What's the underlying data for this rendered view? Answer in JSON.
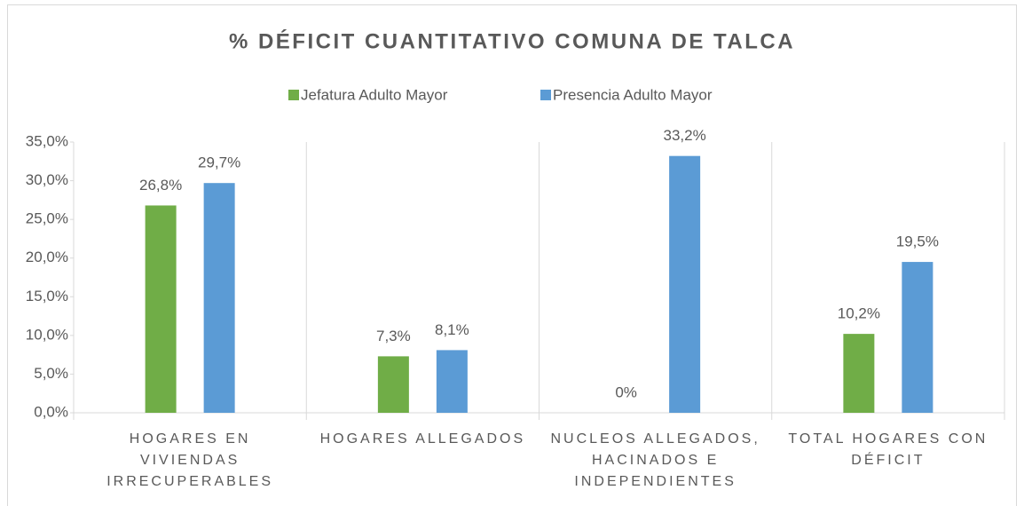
{
  "chart_data": {
    "type": "bar",
    "title": "% DÉFICIT CUANTITATIVO COMUNA DE TALCA",
    "categories": [
      "HOGARES EN VIVIENDAS IRRECUPERABLES",
      "HOGARES ALLEGADOS",
      "NUCLEOS ALLEGADOS, HACINADOS E INDEPENDIENTES",
      "TOTAL HOGARES CON DÉFICIT"
    ],
    "series": [
      {
        "name": "Jefatura Adulto Mayor",
        "color": "#70ad47",
        "values": [
          26.8,
          7.3,
          0,
          10.2
        ],
        "value_labels": [
          "26,8%",
          "7,3%",
          "0%",
          "10,2%"
        ]
      },
      {
        "name": "Presencia Adulto Mayor",
        "color": "#5b9bd5",
        "values": [
          29.7,
          8.1,
          33.2,
          19.5
        ],
        "value_labels": [
          "29,7%",
          "8,1%",
          "33,2%",
          "19,5%"
        ]
      }
    ],
    "ylim": [
      0,
      35
    ],
    "yticks": [
      {
        "value": 0,
        "label": "0,0%"
      },
      {
        "value": 5,
        "label": "5,0%"
      },
      {
        "value": 10,
        "label": "10,0%"
      },
      {
        "value": 15,
        "label": "15,0%"
      },
      {
        "value": 20,
        "label": "20,0%"
      },
      {
        "value": 25,
        "label": "25,0%"
      },
      {
        "value": 30,
        "label": "30,0%"
      },
      {
        "value": 35,
        "label": "35,0%"
      }
    ],
    "legend": "top"
  }
}
